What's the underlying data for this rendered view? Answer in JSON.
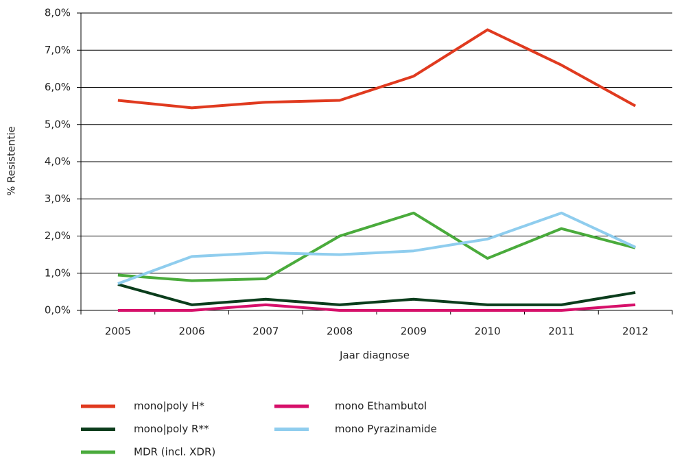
{
  "chart_data": {
    "type": "line",
    "x_label": "Jaar diagnose",
    "y_label": "% Resistentie",
    "categories": [
      "2005",
      "2006",
      "2007",
      "2008",
      "2009",
      "2010",
      "2011",
      "2012"
    ],
    "series": [
      {
        "name": "mono|poly H*",
        "color": "#e03a1f",
        "values": [
          5.65,
          5.45,
          5.6,
          5.65,
          6.3,
          7.55,
          6.6,
          5.5
        ]
      },
      {
        "name": "mono|poly R**",
        "color": "#0b3d1c",
        "values": [
          0.7,
          0.15,
          0.3,
          0.15,
          0.3,
          0.15,
          0.15,
          0.48
        ]
      },
      {
        "name": "MDR (incl. XDR)",
        "color": "#4aab3c",
        "values": [
          0.95,
          0.8,
          0.85,
          2.0,
          2.62,
          1.4,
          2.2,
          1.68
        ]
      },
      {
        "name": "mono Ethambutol",
        "color": "#d6106a",
        "values": [
          0,
          0,
          0.15,
          0,
          0,
          0,
          0,
          0.15
        ]
      },
      {
        "name": "mono Pyrazinamide",
        "color": "#8fcdee",
        "values": [
          0.72,
          1.45,
          1.55,
          1.5,
          1.6,
          1.92,
          2.62,
          1.7
        ]
      }
    ],
    "ylim": [
      0,
      8
    ],
    "yticks": [
      {
        "value": 0,
        "label": "0,0%"
      },
      {
        "value": 1,
        "label": "1,0%"
      },
      {
        "value": 2,
        "label": "2,0%"
      },
      {
        "value": 3,
        "label": "3,0%"
      },
      {
        "value": 4,
        "label": "4,0%"
      },
      {
        "value": 5,
        "label": "5,0%"
      },
      {
        "value": 6,
        "label": "6,0%"
      },
      {
        "value": 7,
        "label": "7,0%"
      },
      {
        "value": 8,
        "label": "8,0%"
      }
    ],
    "grid": true
  }
}
